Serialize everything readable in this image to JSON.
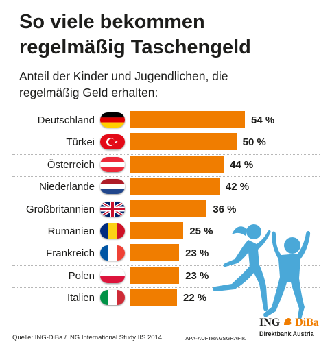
{
  "chart_data": {
    "type": "bar",
    "orientation": "horizontal",
    "title": "So viele bekommen\nregelmäßig Taschengeld",
    "subtitle": "Anteil der Kinder und Jugendlichen, die\nregelmäßig Geld erhalten:",
    "categories": [
      "Deutschland",
      "Türkei",
      "Österreich",
      "Niederlande",
      "Großbritannien",
      "Rumänien",
      "Frankreich",
      "Polen",
      "Italien"
    ],
    "values": [
      54,
      50,
      44,
      42,
      36,
      25,
      23,
      23,
      22
    ],
    "value_labels": [
      "54 %",
      "50 %",
      "44 %",
      "42 %",
      "36 %",
      "25 %",
      "23 %",
      "23 %",
      "22 %"
    ],
    "flags": [
      "flag-germany-icon",
      "flag-turkey-icon",
      "flag-austria-icon",
      "flag-netherlands-icon",
      "flag-uk-icon",
      "flag-romania-icon",
      "flag-france-icon",
      "flag-poland-icon",
      "flag-italy-icon"
    ],
    "xlim": [
      0,
      54
    ],
    "grid": false,
    "bar_color": "#f07d00"
  },
  "footer": {
    "source": "Quelle: ING-DiBa / ING International Study IIS 2014",
    "credit": "APA-AUFTRAGSGRAFIK"
  },
  "logo": {
    "brand_ing": "ING",
    "brand_diba": "DiBa",
    "subtitle": "Direktbank Austria"
  },
  "colors": {
    "bar": "#f07d00",
    "kids_silhouette": "#4aa8d8",
    "text": "#1d1d1b"
  }
}
